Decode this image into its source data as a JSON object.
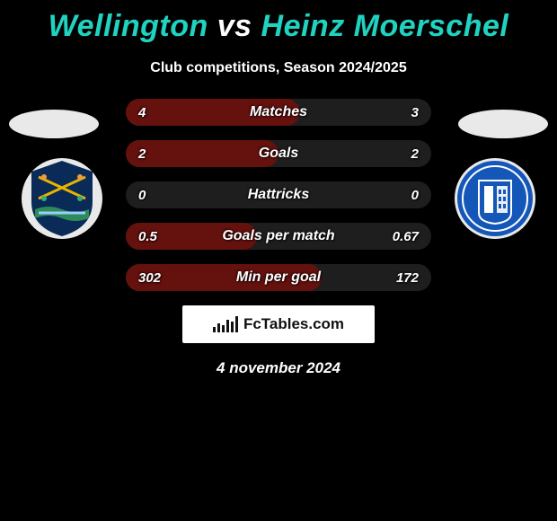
{
  "title": {
    "left_text": "Wellington",
    "vs_text": "vs",
    "right_text": "Heinz Moerschel",
    "accent_color": "#1fd3c0",
    "vs_color": "#ffffff",
    "fontsize": 34
  },
  "subtitle": "Club competitions, Season 2024/2025",
  "ellipse_color": "#e9e9e9",
  "crest_left": {
    "bg": "#e9e9e9",
    "shield_bg": "#0a2a58",
    "accent": "#e9b400"
  },
  "crest_right": {
    "bg": "#e9e9e9",
    "shield_bg": "#1557b8"
  },
  "rows": [
    {
      "label": "Matches",
      "left": "4",
      "right": "3",
      "fill_pct": 57,
      "track": "#1e1e1e",
      "fill": "#65110e"
    },
    {
      "label": "Goals",
      "left": "2",
      "right": "2",
      "fill_pct": 50,
      "track": "#1e1e1e",
      "fill": "#65110e"
    },
    {
      "label": "Hattricks",
      "left": "0",
      "right": "0",
      "fill_pct": 0,
      "track": "#1e1e1e",
      "fill": "#65110e"
    },
    {
      "label": "Goals per match",
      "left": "0.5",
      "right": "0.67",
      "fill_pct": 43,
      "track": "#1e1e1e",
      "fill": "#65110e"
    },
    {
      "label": "Min per goal",
      "left": "302",
      "right": "172",
      "fill_pct": 64,
      "track": "#1e1e1e",
      "fill": "#65110e"
    }
  ],
  "logo_text": "FcTables.com",
  "date": "4 november 2024",
  "background_color": "#000000"
}
